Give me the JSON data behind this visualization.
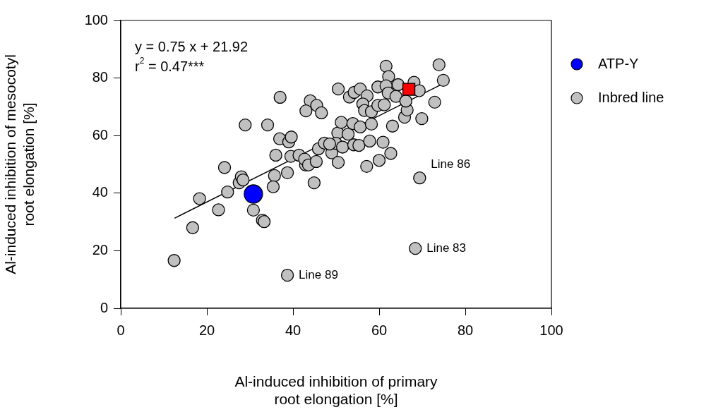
{
  "chart_data": {
    "type": "scatter",
    "xlabel": "Al-induced inhibition of primary root elongation [%]",
    "ylabel": "Al-induced inhibition of mesocotyl root elongation [%]",
    "xlim": [
      0,
      100
    ],
    "xticks": [
      0,
      20,
      40,
      60,
      80,
      100
    ],
    "ylim": [
      0,
      100
    ],
    "yticks": [
      0,
      20,
      40,
      60,
      80,
      100
    ],
    "grid": false,
    "legend": "top right",
    "series": [
      {
        "type": "line",
        "color": "#000000",
        "marker": "none",
        "x": [
          12.5,
          74.9
        ],
        "values": [
          31.3,
          78.1
        ]
      },
      {
        "color": "#ff0000",
        "marker": "square",
        "x": [
          66.9
        ],
        "values": [
          76.1
        ]
      },
      {
        "name": "ATP-Y",
        "color": "#0000ff",
        "marker": "circle",
        "x": [
          30.8
        ],
        "values": [
          39.7
        ]
      },
      {
        "name": "Inbred line",
        "color": "#c0c0c0",
        "marker": "circle",
        "x": [
          12.4,
          16.7,
          18.3,
          22.7,
          24.1,
          24.8,
          27.5,
          28.0,
          28.4,
          28.9,
          30.8,
          32.9,
          33.3,
          34.1,
          37.0,
          35.7,
          35.4,
          36.0,
          36.9,
          39.0,
          39.6,
          38.7,
          39.5,
          41.4,
          42.9,
          42.7,
          43.6,
          45.4,
          44.9,
          45.9,
          44.0,
          45.5,
          43.0,
          46.6,
          47.3,
          49.0,
          50.5,
          50.4,
          51.2,
          50.5,
          50.0,
          51.5,
          48.5,
          54.1,
          55.3,
          57.8,
          60.9,
          62.7,
          60.0,
          57.1,
          52.8,
          53.9,
          55.6,
          58.2,
          53.1,
          54.2,
          55.6,
          57.2,
          56.2,
          56.6,
          58.2,
          59.7,
          59.7,
          61.2,
          61.6,
          62.2,
          61.6,
          62.1,
          63.9,
          64.4,
          63.1,
          65.9,
          66.5,
          66.2,
          68.1,
          69.3,
          69.9,
          72.9,
          73.9,
          74.9,
          69.4,
          68.4,
          38.7
        ],
        "values": [
          16.6,
          28.0,
          38.1,
          34.2,
          48.9,
          40.4,
          43.6,
          45.7,
          44.6,
          63.7,
          34.1,
          30.6,
          30.1,
          63.7,
          73.3,
          46.1,
          42.2,
          53.2,
          58.9,
          57.8,
          59.5,
          47.1,
          52.8,
          53.2,
          49.8,
          51.8,
          49.8,
          51.0,
          43.6,
          55.4,
          72.1,
          70.5,
          68.6,
          67.9,
          57.4,
          54.0,
          50.7,
          60.9,
          64.6,
          76.2,
          57.3,
          56.0,
          57.1,
          56.8,
          56.6,
          58.1,
          57.7,
          53.8,
          51.4,
          49.3,
          60.5,
          64.2,
          63.0,
          64.0,
          73.4,
          75.0,
          76.2,
          73.8,
          71.0,
          68.7,
          68.3,
          76.9,
          70.5,
          70.7,
          84.1,
          80.5,
          77.3,
          74.8,
          73.6,
          77.7,
          63.3,
          66.4,
          68.9,
          72.0,
          78.5,
          75.6,
          65.9,
          71.6,
          84.6,
          79.2,
          45.3,
          20.8,
          11.5
        ]
      }
    ],
    "annotations": [
      "y = 0.75 x + 21.92",
      "r$^{2}$ = 0.47***",
      {
        "text": "Line 86",
        "x": 69.4,
        "y": 45.3
      },
      {
        "text": "Line 83",
        "x": 68.4,
        "y": 20.8
      },
      {
        "text": "Line 89",
        "x": 38.7,
        "y": 11.5
      }
    ]
  }
}
